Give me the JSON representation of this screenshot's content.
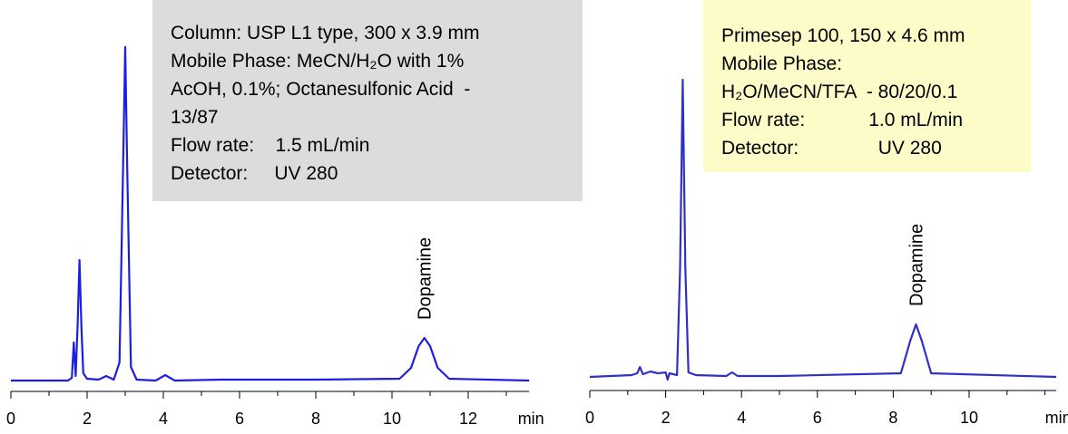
{
  "chart_data": [
    {
      "type": "line",
      "color": "#1e1ee0",
      "xlabel": "min",
      "xlim": [
        0,
        13.6
      ],
      "ylim": [
        0,
        400
      ],
      "xticks": [
        0,
        2,
        4,
        6,
        8,
        10,
        12
      ],
      "xminor_ticks": [
        1,
        3,
        5,
        7,
        9,
        11,
        13
      ],
      "x": [
        0,
        1.5,
        1.6,
        1.65,
        1.7,
        1.75,
        1.8,
        1.85,
        1.9,
        2.0,
        2.3,
        2.5,
        2.7,
        2.85,
        2.95,
        3.0,
        3.05,
        3.15,
        3.3,
        3.8,
        4.05,
        4.3,
        5.5,
        8,
        10.2,
        10.5,
        10.7,
        10.85,
        11.0,
        11.2,
        11.5,
        13.6
      ],
      "values": [
        0,
        0,
        3,
        42,
        5,
        60,
        133,
        60,
        8,
        2,
        1,
        5,
        1,
        20,
        250,
        368,
        240,
        15,
        1,
        0,
        6,
        0,
        1,
        1,
        2,
        14,
        38,
        47,
        38,
        14,
        2,
        0
      ],
      "peak_label": {
        "text": "Dopamine",
        "x": 10.85
      },
      "annotation": {
        "background": "#dcdcdc",
        "lines": [
          "Column: USP L1 type, 300 x 3.9 mm",
          "Mobile Phase: MeCN/H₂O with 1%",
          "AcOH, 0.1%; Octanesulfonic Acid  -",
          "13/87",
          "Flow rate:    1.5 mL/min",
          "Detector:     UV 280"
        ]
      }
    },
    {
      "type": "line",
      "color": "#3030c8",
      "xlabel": "min",
      "xlim": [
        0,
        12.3
      ],
      "ylim": [
        0,
        400
      ],
      "xticks": [
        0,
        2,
        4,
        6,
        8,
        10
      ],
      "xminor_ticks": [
        1,
        3,
        5,
        7,
        9,
        11,
        12
      ],
      "x": [
        0,
        1.1,
        1.25,
        1.32,
        1.4,
        1.6,
        1.8,
        2.0,
        2.05,
        2.1,
        2.3,
        2.38,
        2.45,
        2.52,
        2.6,
        2.8,
        3.6,
        3.75,
        3.9,
        5,
        8.2,
        8.45,
        8.6,
        8.75,
        9.0,
        12.3
      ],
      "values": [
        0,
        2,
        4,
        11,
        3,
        6,
        4,
        5,
        -3,
        4,
        2,
        120,
        328,
        120,
        5,
        2,
        1,
        5,
        1,
        1,
        4,
        40,
        58,
        40,
        4,
        0
      ],
      "peak_label": {
        "text": "Dopamine",
        "x": 8.6
      },
      "annotation": {
        "background": "#fdfcc8",
        "lines": [
          "Primesep 100, 150 x 4.6 mm",
          "Mobile Phase:",
          "H₂O/MeCN/TFA  - 80/20/0.1",
          "Flow rate:            1.0 mL/min",
          "Detector:               UV 280"
        ]
      }
    }
  ]
}
